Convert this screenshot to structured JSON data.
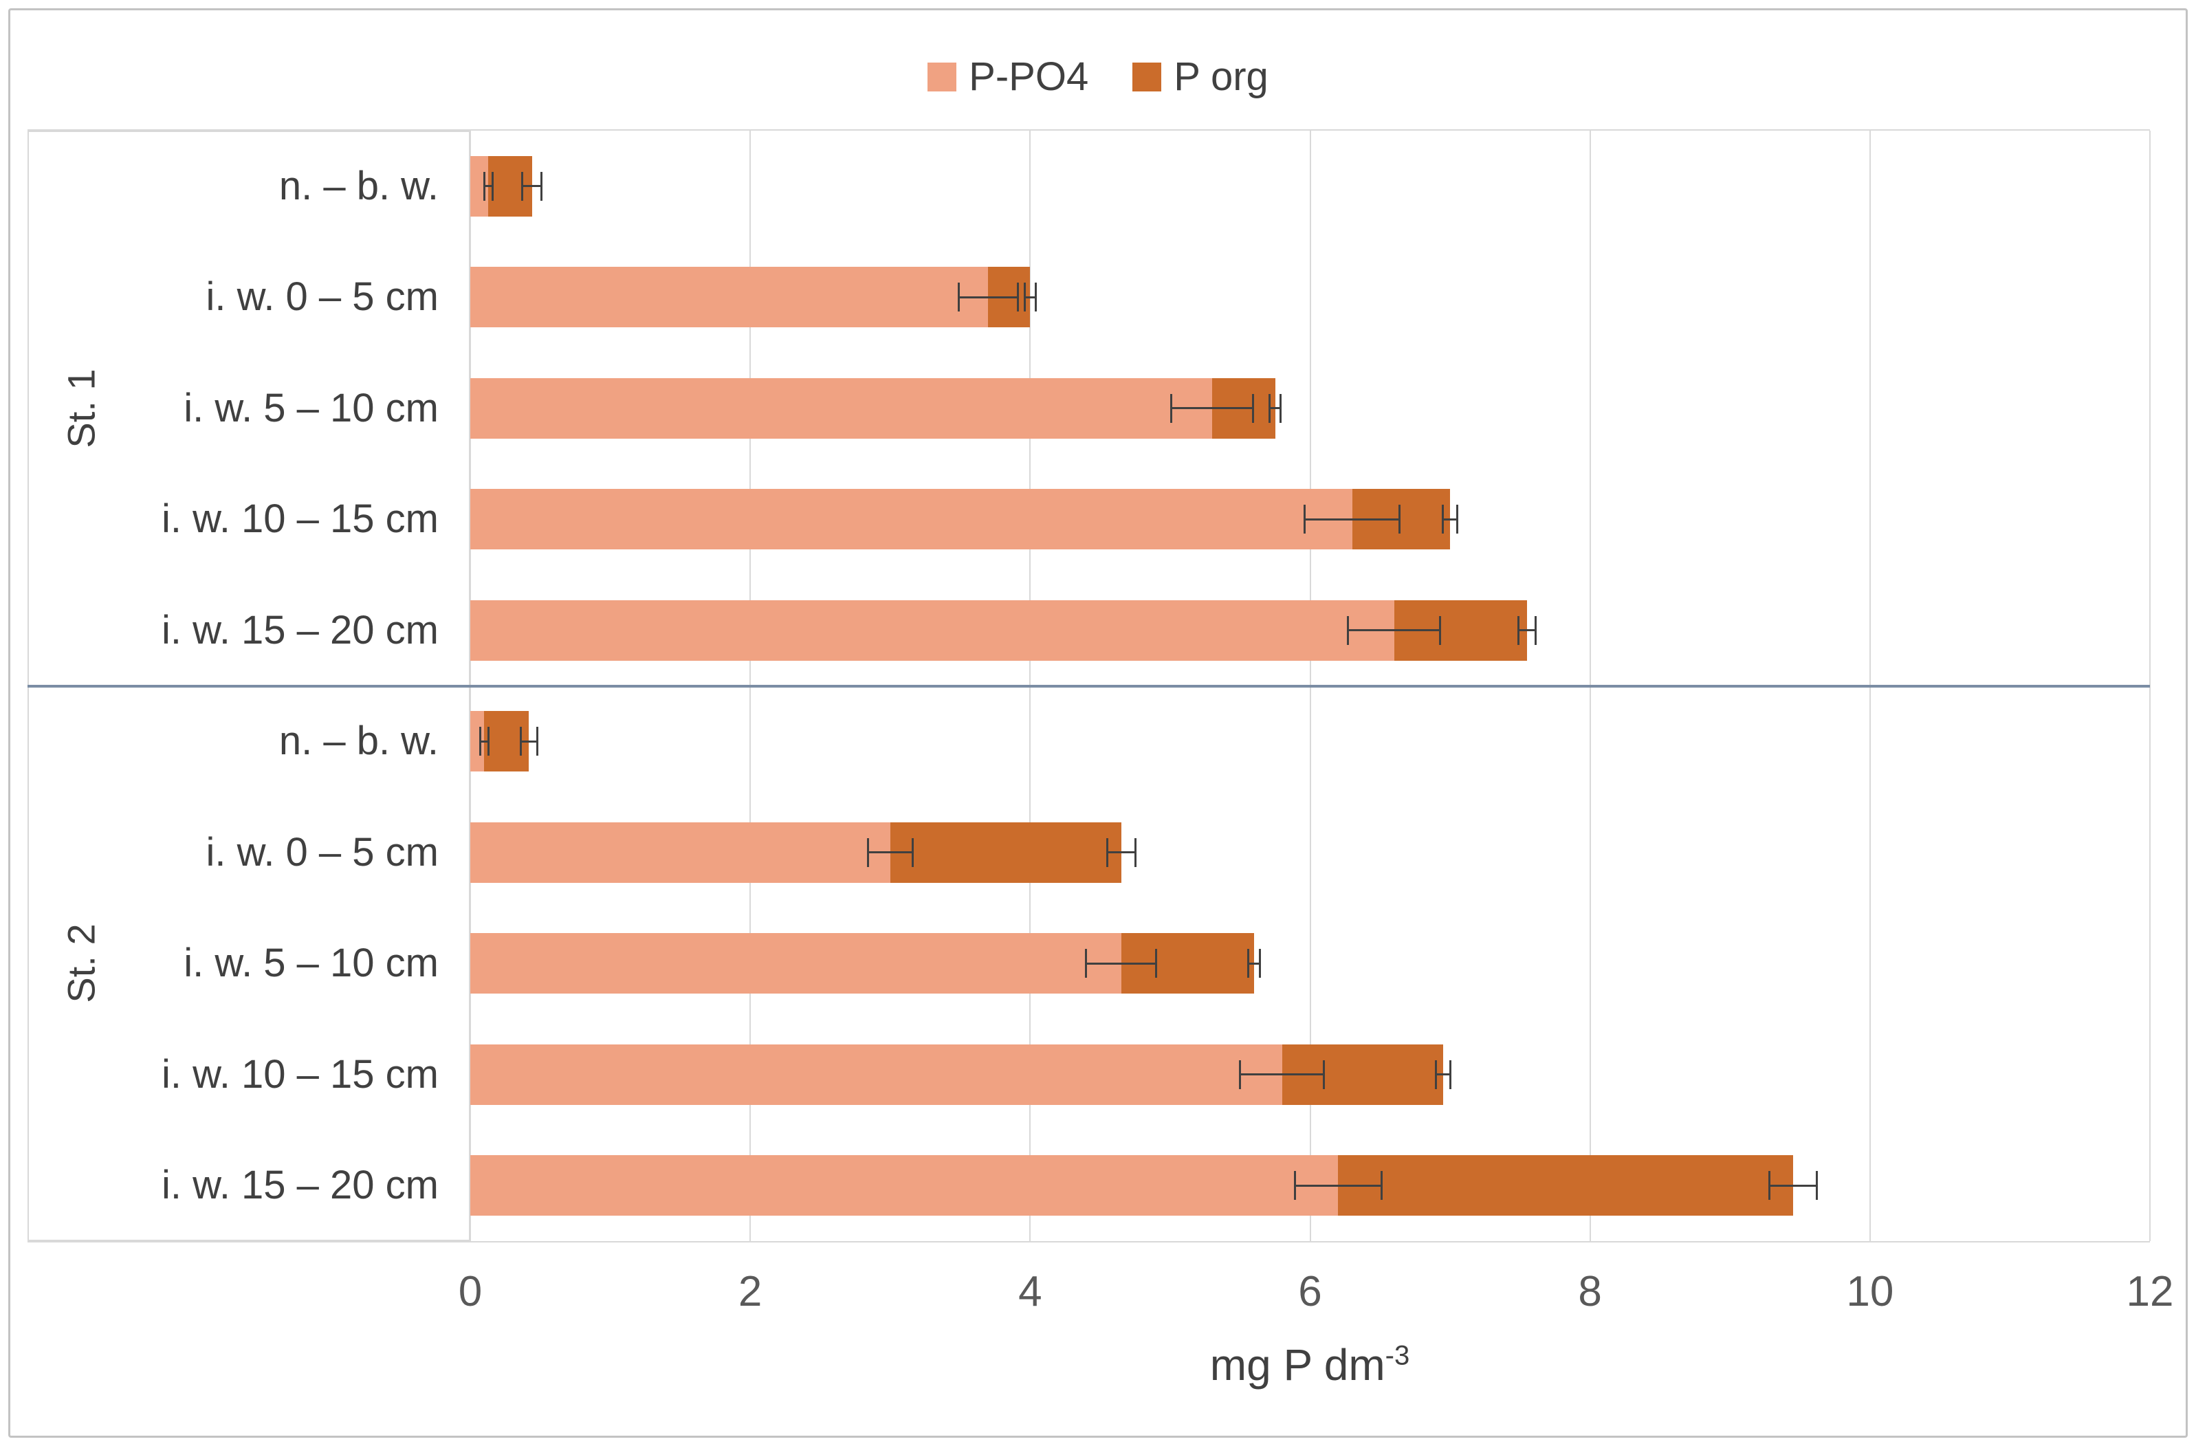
{
  "style": {
    "grid_color": "#d9d9d9",
    "axis_box_border": "#d9d9d9",
    "text_color": "#404040",
    "tick_text_color": "#595959",
    "error_bar_color": "#404040",
    "divider_color": "#7b8da4",
    "figure_border": "#c3c3c3",
    "background": "#ffffff"
  },
  "legend": {
    "items": [
      {
        "label": "P-PO4",
        "color": "#f0a282"
      },
      {
        "label": "P org",
        "color": "#cb6c2b"
      }
    ]
  },
  "chart_data": {
    "type": "bar",
    "orientation": "horizontal",
    "stacked": true,
    "grid": "vertical",
    "legend_position": "top",
    "xlabel": "mg P dm⁻³",
    "xlabel_base": "mg P dm",
    "xlabel_exp": "-3",
    "xlim": [
      0,
      12
    ],
    "xticks": [
      0,
      2,
      4,
      6,
      8,
      10,
      12
    ],
    "groups": [
      "St. 1",
      "St. 2"
    ],
    "categories": [
      "n. – b. w.",
      "i. w. 0 – 5 cm",
      "i. w. 5 – 10 cm",
      "i. w. 10 – 15 cm",
      "i. w. 15 – 20 cm"
    ],
    "series": [
      {
        "name": "P-PO4",
        "color": "#f0a282",
        "values": {
          "St. 1": [
            0.13,
            3.7,
            5.3,
            6.3,
            6.6
          ],
          "St. 2": [
            0.1,
            3.0,
            4.65,
            5.8,
            6.2
          ]
        }
      },
      {
        "name": "P org",
        "color": "#cb6c2b",
        "values": {
          "St. 1": [
            0.31,
            0.3,
            0.45,
            0.7,
            0.95
          ],
          "St. 2": [
            0.32,
            1.65,
            0.95,
            1.15,
            3.25
          ]
        }
      }
    ],
    "error_bars": {
      "P-PO4": {
        "St. 1": [
          0.03,
          0.21,
          0.29,
          0.34,
          0.33
        ],
        "St. 2": [
          0.03,
          0.16,
          0.25,
          0.3,
          0.31
        ]
      },
      "P org": {
        "St. 1": [
          0.07,
          0.04,
          0.04,
          0.05,
          0.06
        ],
        "St. 2": [
          0.06,
          0.1,
          0.04,
          0.05,
          0.17
        ]
      }
    }
  }
}
